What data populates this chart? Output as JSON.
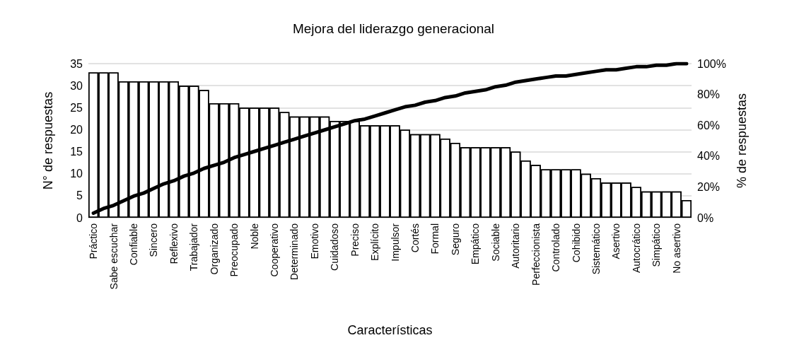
{
  "chart_data": {
    "type": "bar",
    "title": "Mejora del liderazgo generacional",
    "xlabel": "Características",
    "ylabel": "N° de respuestas",
    "y2label": "% de respuestas",
    "categories": [
      "Práctico",
      null,
      "Sabe escuchar",
      null,
      "Confiable",
      null,
      "Sincero",
      null,
      "Reflexivo",
      null,
      "Trabajador",
      null,
      "Organizado",
      null,
      "Preocupado",
      null,
      "Noble",
      null,
      "Cooperativo",
      null,
      "Determinado",
      null,
      "Emotivo",
      null,
      "Cuidadoso",
      null,
      "Preciso",
      null,
      "Explícito",
      null,
      "Impulsor",
      null,
      "Cortés",
      null,
      "Formal",
      null,
      "Seguro",
      null,
      "Empático",
      null,
      "Sociable",
      null,
      "Autoritario",
      null,
      "Perfeccionista",
      null,
      "Controlado",
      null,
      "Cohibido",
      null,
      "Sistemático",
      null,
      "Asertivo",
      null,
      "Autocrático",
      null,
      "Simpático",
      null,
      "No asertivo",
      null
    ],
    "series": [
      {
        "color": "#ffffff",
        "values": [
          33,
          33,
          33,
          31,
          31,
          31,
          31,
          31,
          31,
          30,
          30,
          29,
          26,
          26,
          26,
          25,
          25,
          25,
          25,
          24,
          23,
          23,
          23,
          23,
          22,
          22,
          22,
          21,
          21,
          21,
          21,
          20,
          19,
          19,
          19,
          18,
          17,
          16,
          16,
          16,
          16,
          16,
          15,
          13,
          12,
          11,
          11,
          11,
          11,
          10,
          9,
          8,
          8,
          8,
          7,
          6,
          6,
          6,
          6,
          4
        ]
      },
      {
        "type": "line",
        "axis": "y2",
        "color": "#000000",
        "values": [
          3,
          6,
          8,
          11,
          14,
          16,
          19,
          22,
          24,
          27,
          29,
          32,
          34,
          36,
          39,
          41,
          43,
          45,
          47,
          49,
          51,
          53,
          55,
          57,
          59,
          61,
          63,
          64,
          66,
          68,
          70,
          72,
          73,
          75,
          76,
          78,
          79,
          81,
          82,
          83,
          85,
          86,
          88,
          89,
          90,
          91,
          92,
          92,
          93,
          94,
          95,
          96,
          96,
          97,
          98,
          98,
          99,
          99,
          100,
          100
        ]
      }
    ],
    "ylim": [
      0,
      35
    ],
    "yticks": [
      0,
      5,
      10,
      15,
      20,
      25,
      30,
      35
    ],
    "y2lim": [
      0,
      100
    ],
    "y2ticks": [
      {
        "value": 0,
        "label": "0%"
      },
      {
        "value": 20,
        "label": "20%"
      },
      {
        "value": 40,
        "label": "40%"
      },
      {
        "value": 60,
        "label": "60%"
      },
      {
        "value": 80,
        "label": "80%"
      },
      {
        "value": 100,
        "label": "100%"
      }
    ],
    "grid": "y",
    "marker": "none",
    "line_style": "solid"
  }
}
